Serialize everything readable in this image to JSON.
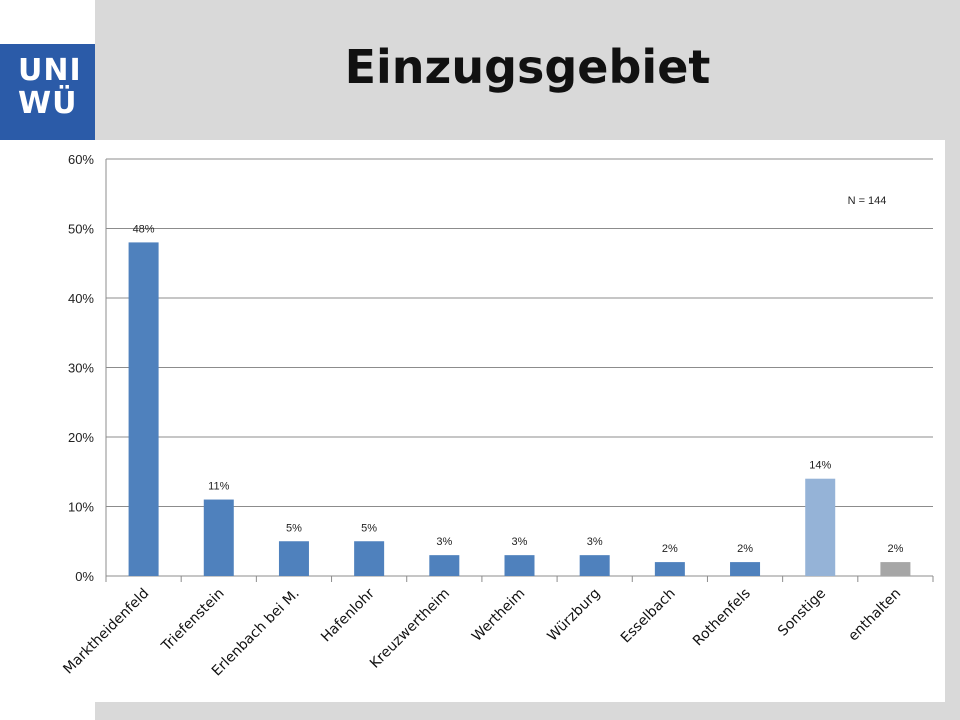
{
  "slide": {
    "title": "Einzugsgebiet",
    "logo_text": "UNI\nWÜ"
  },
  "chart_data": {
    "type": "bar",
    "title": "",
    "xlabel": "",
    "ylabel": "",
    "ylim": [
      0,
      60
    ],
    "yticks": [
      "0%",
      "10%",
      "20%",
      "30%",
      "40%",
      "50%",
      "60%"
    ],
    "grid": true,
    "annotation": "N = 144",
    "categories": [
      "Marktheidenfeld",
      "Triefenstein",
      "Erlenbach bei M.",
      "Hafenlohr",
      "Kreuzwertheim",
      "Wertheim",
      "Würzburg",
      "Esselbach",
      "Rothenfels",
      "Sonstige",
      "enthalten"
    ],
    "values": [
      48,
      11,
      5,
      5,
      3,
      3,
      3,
      2,
      2,
      14,
      2
    ],
    "value_labels": [
      "48%",
      "11%",
      "5%",
      "5%",
      "3%",
      "3%",
      "3%",
      "2%",
      "2%",
      "14%",
      "2%"
    ],
    "bar_colors": [
      "#4f81bd",
      "#4f81bd",
      "#4f81bd",
      "#4f81bd",
      "#4f81bd",
      "#4f81bd",
      "#4f81bd",
      "#4f81bd",
      "#4f81bd",
      "#95b3d7",
      "#a6a6a6"
    ]
  }
}
